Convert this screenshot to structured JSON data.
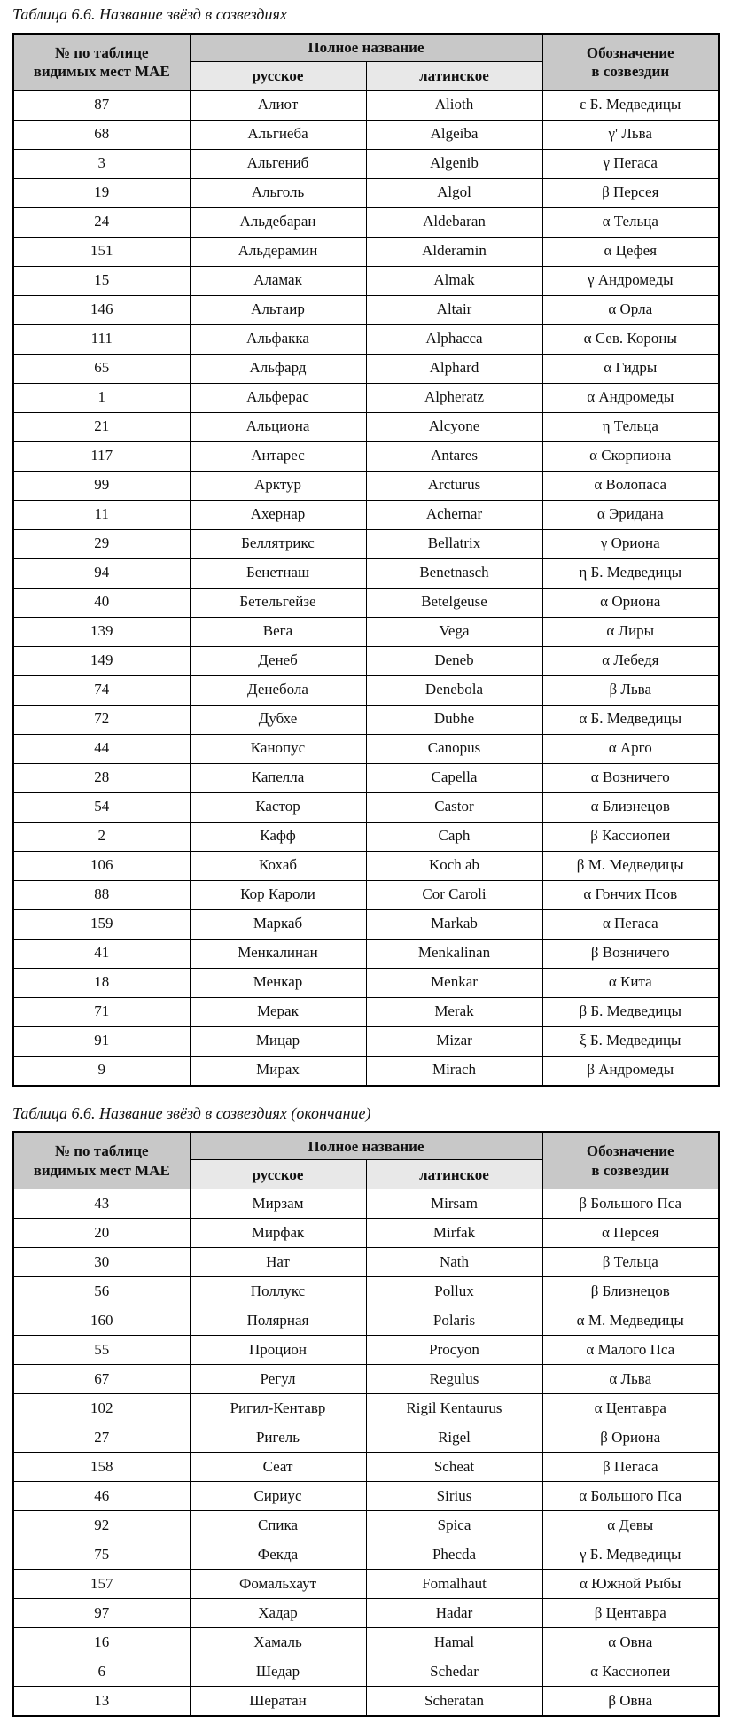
{
  "colors": {
    "header_bg": "#c8c8c8",
    "subheader_bg": "#e8e8e8",
    "border": "#000000",
    "text": "#111111",
    "page_bg": "#ffffff"
  },
  "tables": [
    {
      "caption": "Таблица 6.6. Название звёзд в созвездиях",
      "headers": {
        "number": [
          "№ по таблице",
          "видимых мест МАЕ"
        ],
        "full_name": "Полное название",
        "russian": "русское",
        "latin": "латинское",
        "designation": [
          "Обозначение",
          "в созвездии"
        ]
      },
      "rows": [
        [
          "87",
          "Алиот",
          "Alioth",
          "ε Б. Медведицы"
        ],
        [
          "68",
          "Альгиеба",
          "Algeiba",
          "γ' Льва"
        ],
        [
          "3",
          "Альгениб",
          "Algenib",
          "γ Пегаса"
        ],
        [
          "19",
          "Альголь",
          "Algol",
          "β Персея"
        ],
        [
          "24",
          "Альдебаран",
          "Aldebaran",
          "α Тельца"
        ],
        [
          "151",
          "Альдерамин",
          "Alderamin",
          "α Цефея"
        ],
        [
          "15",
          "Аламак",
          "Almak",
          "γ Андромеды"
        ],
        [
          "146",
          "Альтаир",
          "Altair",
          "α Орла"
        ],
        [
          "111",
          "Альфакка",
          "Alphacca",
          "α Сев. Короны"
        ],
        [
          "65",
          "Альфард",
          "Alphard",
          "α Гидры"
        ],
        [
          "1",
          "Альферас",
          "Alpheratz",
          "α Андромеды"
        ],
        [
          "21",
          "Альциона",
          "Alcyone",
          "η Тельца"
        ],
        [
          "117",
          "Антарес",
          "Antares",
          "α Скорпиона"
        ],
        [
          "99",
          "Арктур",
          "Arcturus",
          "α Волопаса"
        ],
        [
          "11",
          "Ахернар",
          "Achernar",
          "α Эридана"
        ],
        [
          "29",
          "Беллятрикс",
          "Bellatrix",
          "γ Ориона"
        ],
        [
          "94",
          "Бенетнаш",
          "Benetnasch",
          "η Б. Медведицы"
        ],
        [
          "40",
          "Бетельгейзе",
          "Betelgeuse",
          "α Ориона"
        ],
        [
          "139",
          "Вега",
          "Vega",
          "α Лиры"
        ],
        [
          "149",
          "Денеб",
          "Deneb",
          "α Лебедя"
        ],
        [
          "74",
          "Денебола",
          "Denebola",
          "β Льва"
        ],
        [
          "72",
          "Дубхе",
          "Dubhe",
          "α Б. Медведицы"
        ],
        [
          "44",
          "Канопус",
          "Canopus",
          "α Арго"
        ],
        [
          "28",
          "Капелла",
          "Capella",
          "α Возничего"
        ],
        [
          "54",
          "Кастор",
          "Castor",
          "α Близнецов"
        ],
        [
          "2",
          "Кафф",
          "Caph",
          "β Кассиопеи"
        ],
        [
          "106",
          "Кохаб",
          "Koch ab",
          "β М. Медведицы"
        ],
        [
          "88",
          "Кор Кароли",
          "Cor Caroli",
          "α Гончих Псов"
        ],
        [
          "159",
          "Маркаб",
          "Markab",
          "α Пегаса"
        ],
        [
          "41",
          "Менкалинан",
          "Menkalinan",
          "β Возничего"
        ],
        [
          "18",
          "Менкар",
          "Menkar",
          "α Кита"
        ],
        [
          "71",
          "Мерак",
          "Merak",
          "β Б. Медведицы"
        ],
        [
          "91",
          "Мицар",
          "Mizar",
          "ξ Б. Медведицы"
        ],
        [
          "9",
          "Мирах",
          "Mirach",
          "β Андромеды"
        ]
      ]
    },
    {
      "caption": "Таблица 6.6. Название звёзд в созвездиях (окончание)",
      "headers": {
        "number": [
          "№ по таблице",
          "видимых мест МАЕ"
        ],
        "full_name": "Полное название",
        "russian": "русское",
        "latin": "латинское",
        "designation": [
          "Обозначение",
          "в созвездии"
        ]
      },
      "rows": [
        [
          "43",
          "Мирзам",
          "Mirsam",
          "β Большого Пса"
        ],
        [
          "20",
          "Мирфак",
          "Mirfak",
          "α Персея"
        ],
        [
          "30",
          "Нат",
          "Nath",
          "β Тельца"
        ],
        [
          "56",
          "Поллукс",
          "Pollux",
          "β Близнецов"
        ],
        [
          "160",
          "Полярная",
          "Polaris",
          "α М. Медведицы"
        ],
        [
          "55",
          "Процион",
          "Procyon",
          "α Малого Пса"
        ],
        [
          "67",
          "Регул",
          "Regulus",
          "α Льва"
        ],
        [
          "102",
          "Ригил-Кентавр",
          "Rigil Kentaurus",
          "α Центавра"
        ],
        [
          "27",
          "Ригель",
          "Rigel",
          "β Ориона"
        ],
        [
          "158",
          "Сеат",
          "Scheat",
          "β Пегаса"
        ],
        [
          "46",
          "Сириус",
          "Sirius",
          "α Большого Пса"
        ],
        [
          "92",
          "Спика",
          "Spica",
          "α Девы"
        ],
        [
          "75",
          "Фекда",
          "Phecda",
          "γ Б. Медведицы"
        ],
        [
          "157",
          "Фомальхаут",
          "Fomalhaut",
          "α Южной Рыбы"
        ],
        [
          "97",
          "Хадар",
          "Hadar",
          "β Центавра"
        ],
        [
          "16",
          "Хамаль",
          "Hamal",
          "α Овна"
        ],
        [
          "6",
          "Шедар",
          "Schedar",
          "α Кассиопеи"
        ],
        [
          "13",
          "Шератан",
          "Scheratan",
          "β Овна"
        ]
      ]
    }
  ],
  "row_cell_names": [
    "star-number",
    "star-name-russian",
    "star-name-latin",
    "star-designation"
  ]
}
